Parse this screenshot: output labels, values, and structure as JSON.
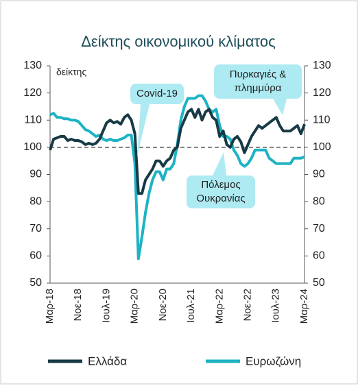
{
  "chart_data": {
    "type": "line",
    "title": "Δείκτης οικονομικού κλίματος",
    "y_axis_label": "δείκτης",
    "categories": [
      "Μαρ-18",
      null,
      null,
      null,
      null,
      null,
      null,
      null,
      "Νοε-18",
      null,
      null,
      null,
      null,
      null,
      null,
      null,
      "Ιουλ-19",
      null,
      null,
      null,
      null,
      null,
      null,
      null,
      "Μαρ-20",
      null,
      null,
      null,
      null,
      null,
      null,
      null,
      "Νοε-20",
      null,
      null,
      null,
      null,
      null,
      null,
      null,
      "Ιουλ-21",
      null,
      null,
      null,
      null,
      null,
      null,
      null,
      "Μαρ-22",
      null,
      null,
      null,
      null,
      null,
      null,
      null,
      "Νοε-22",
      null,
      null,
      null,
      null,
      null,
      null,
      null,
      "Ιουλ-23",
      null,
      null,
      null,
      null,
      null,
      null,
      null,
      "Μαρ-24"
    ],
    "series": [
      {
        "name": "Ελλάδα",
        "color": "#173a45",
        "values": [
          99,
          103,
          103.5,
          104,
          104,
          102.5,
          103,
          102.5,
          102.5,
          102,
          101,
          101.5,
          101,
          101.5,
          103,
          106,
          109,
          110,
          109,
          109.5,
          108.5,
          111,
          112,
          110,
          105,
          83,
          83,
          88,
          90,
          92,
          95,
          95,
          93,
          95,
          96,
          99,
          100,
          107,
          110,
          113,
          114,
          111,
          114,
          110,
          113,
          114,
          111,
          110,
          104,
          106,
          101,
          100,
          103,
          104,
          102,
          98,
          101,
          104,
          106,
          108,
          107,
          108,
          109,
          110,
          111,
          108,
          106,
          106,
          106,
          107,
          108,
          105,
          108.5
        ]
      },
      {
        "name": "Ευρωζώνη",
        "color": "#1db3c4",
        "values": [
          112,
          112.5,
          111,
          111,
          110.5,
          110.5,
          110,
          110,
          109.5,
          108,
          106.5,
          106,
          105,
          104,
          104.5,
          103,
          102.5,
          103,
          102.5,
          102.5,
          103,
          103.5,
          104.5,
          104.5,
          94,
          59,
          67,
          76,
          83,
          88,
          91,
          91,
          88,
          92,
          92,
          94,
          101,
          110,
          115,
          118,
          118,
          118,
          119,
          119,
          117,
          114,
          113,
          114,
          108,
          104,
          104,
          103,
          99,
          97,
          94,
          93,
          94,
          96,
          99,
          99,
          99,
          99,
          96,
          95,
          94,
          94,
          94,
          94,
          94,
          96,
          96,
          96,
          96.5
        ]
      }
    ],
    "ylim": [
      50,
      130
    ],
    "yticks": [
      50,
      60,
      70,
      80,
      90,
      100,
      110,
      120,
      130
    ],
    "y2lim": [
      50,
      130
    ],
    "y2ticks": [
      50,
      60,
      70,
      80,
      90,
      100,
      110,
      120,
      130
    ],
    "reference_line": 100,
    "annotations": [
      {
        "lines": [
          "Covid-19"
        ]
      },
      {
        "lines": [
          "Πυρκαγιές &",
          "πλημμύρα"
        ]
      },
      {
        "lines": [
          "Πόλεμος",
          "Ουκρανίας"
        ]
      }
    ]
  }
}
